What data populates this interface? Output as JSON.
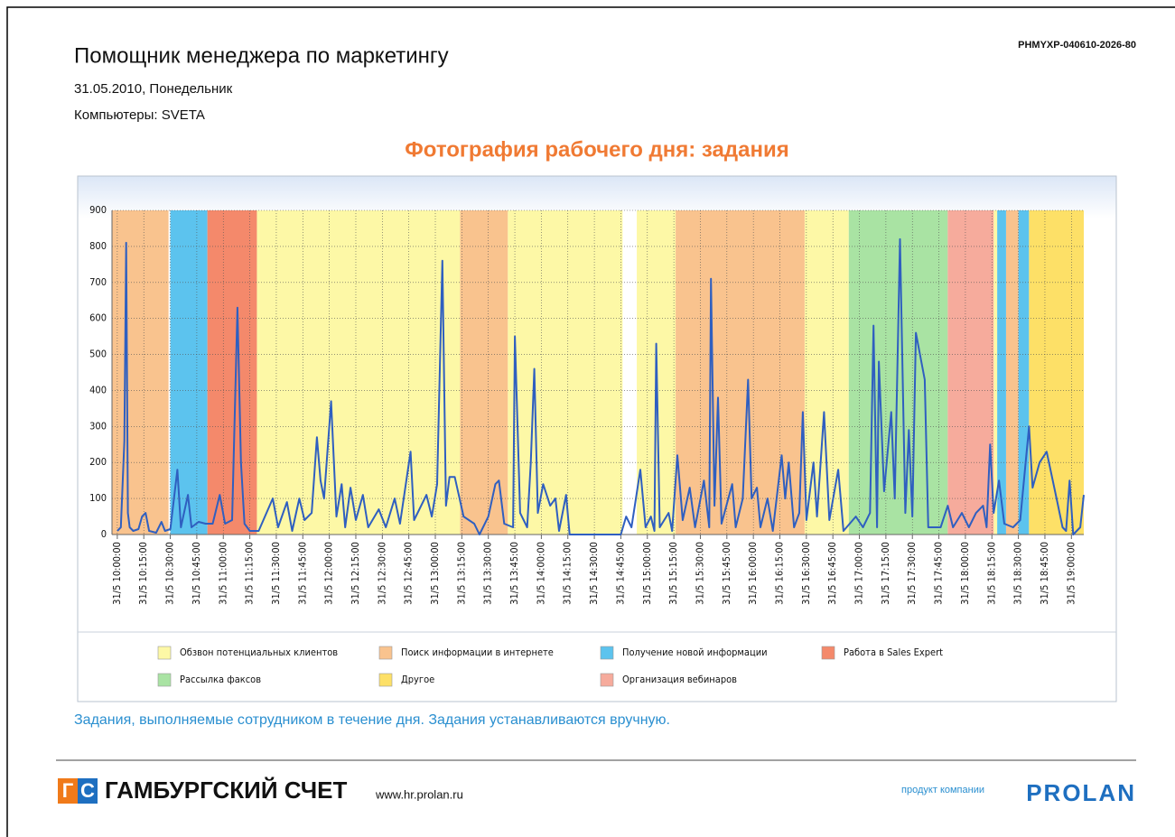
{
  "header": {
    "title": "Помощник менеджера по маркетингу",
    "date": "31.05.2010, Понедельник",
    "computers": "Компьютеры: SVETA",
    "code": "PHMYXP-040610-2026-80"
  },
  "chart_data": {
    "type": "line",
    "title": "Фотография рабочего дня: задания",
    "color": "#2f5fc0",
    "ylim": [
      0,
      900
    ],
    "yticks": [
      0,
      100,
      200,
      300,
      400,
      500,
      600,
      700,
      800,
      900
    ],
    "grid": true,
    "xlim": [
      "31/5 09:57:00",
      "31/5 19:07:00"
    ],
    "xticks": [
      "31/5 10:00:00",
      "31/5 10:15:00",
      "31/5 10:30:00",
      "31/5 10:45:00",
      "31/5 11:00:00",
      "31/5 11:15:00",
      "31/5 11:30:00",
      "31/5 11:45:00",
      "31/5 12:00:00",
      "31/5 12:15:00",
      "31/5 12:30:00",
      "31/5 12:45:00",
      "31/5 13:00:00",
      "31/5 13:15:00",
      "31/5 13:30:00",
      "31/5 13:45:00",
      "31/5 14:00:00",
      "31/5 14:15:00",
      "31/5 14:30:00",
      "31/5 14:45:00",
      "31/5 15:00:00",
      "31/5 15:15:00",
      "31/5 15:30:00",
      "31/5 15:45:00",
      "31/5 16:00:00",
      "31/5 16:15:00",
      "31/5 16:30:00",
      "31/5 16:45:00",
      "31/5 17:00:00",
      "31/5 17:15:00",
      "31/5 17:30:00",
      "31/5 17:45:00",
      "31/5 18:00:00",
      "31/5 18:15:00",
      "31/5 18:30:00",
      "31/5 18:45:00",
      "31/5 19:00:00"
    ],
    "x": [
      "31/5 10:00:00",
      "31/5 10:02:00",
      "31/5 10:04:00",
      "31/5 10:05:00",
      "31/5 10:06:00",
      "31/5 10:07:00",
      "31/5 10:09:00",
      "31/5 10:12:00",
      "31/5 10:14:00",
      "31/5 10:16:00",
      "31/5 10:18:00",
      "31/5 10:22:00",
      "31/5 10:25:00",
      "31/5 10:27:00",
      "31/5 10:30:00",
      "31/5 10:34:00",
      "31/5 10:36:00",
      "31/5 10:40:00",
      "31/5 10:42:00",
      "31/5 10:46:00",
      "31/5 10:50:00",
      "31/5 10:54:00",
      "31/5 10:58:00",
      "31/5 11:01:00",
      "31/5 11:05:00",
      "31/5 11:08:00",
      "31/5 11:10:00",
      "31/5 11:12:00",
      "31/5 11:15:00",
      "31/5 11:20:00",
      "31/5 11:28:00",
      "31/5 11:31:00",
      "31/5 11:36:00",
      "31/5 11:39:00",
      "31/5 11:43:00",
      "31/5 11:46:00",
      "31/5 11:50:00",
      "31/5 11:53:00",
      "31/5 11:55:00",
      "31/5 11:57:00",
      "31/5 12:01:00",
      "31/5 12:04:00",
      "31/5 12:07:00",
      "31/5 12:09:00",
      "31/5 12:12:00",
      "31/5 12:15:00",
      "31/5 12:19:00",
      "31/5 12:22:00",
      "31/5 12:28:00",
      "31/5 12:32:00",
      "31/5 12:37:00",
      "31/5 12:40:00",
      "31/5 12:46:00",
      "31/5 12:48:00",
      "31/5 12:55:00",
      "31/5 12:58:00",
      "31/5 13:01:00",
      "31/5 13:04:00",
      "31/5 13:06:00",
      "31/5 13:08:00",
      "31/5 13:11:00",
      "31/5 13:16:00",
      "31/5 13:22:00",
      "31/5 13:25:00",
      "31/5 13:30:00",
      "31/5 13:34:00",
      "31/5 13:36:00",
      "31/5 13:39:00",
      "31/5 13:44:00",
      "31/5 13:45:00",
      "31/5 13:48:00",
      "31/5 13:52:00",
      "31/5 13:54:00",
      "31/5 13:56:00",
      "31/5 13:58:00",
      "31/5 14:01:00",
      "31/5 14:05:00",
      "31/5 14:08:00",
      "31/5 14:10:00",
      "31/5 14:14:00",
      "31/5 14:16:00",
      "31/5 14:45:00",
      "31/5 14:48:00",
      "31/5 14:51:00",
      "31/5 14:56:00",
      "31/5 14:59:00",
      "31/5 15:02:00",
      "31/5 15:04:00",
      "31/5 15:05:00",
      "31/5 15:07:00",
      "31/5 15:12:00",
      "31/5 15:14:00",
      "31/5 15:17:00",
      "31/5 15:20:00",
      "31/5 15:24:00",
      "31/5 15:27:00",
      "31/5 15:32:00",
      "31/5 15:35:00",
      "31/5 15:36:00",
      "31/5 15:38:00",
      "31/5 15:40:00",
      "31/5 15:42:00",
      "31/5 15:48:00",
      "31/5 15:50:00",
      "31/5 15:54:00",
      "31/5 15:57:00",
      "31/5 15:59:00",
      "31/5 16:02:00",
      "31/5 16:04:00",
      "31/5 16:08:00",
      "31/5 16:11:00",
      "31/5 16:16:00",
      "31/5 16:18:00",
      "31/5 16:20:00",
      "31/5 16:23:00",
      "31/5 16:26:00",
      "31/5 16:28:00",
      "31/5 16:30:00",
      "31/5 16:34:00",
      "31/5 16:36:00",
      "31/5 16:40:00",
      "31/5 16:43:00",
      "31/5 16:48:00",
      "31/5 16:51:00",
      "31/5 16:58:00",
      "31/5 17:02:00",
      "31/5 17:06:00",
      "31/5 17:08:00",
      "31/5 17:10:00",
      "31/5 17:11:00",
      "31/5 17:14:00",
      "31/5 17:18:00",
      "31/5 17:20:00",
      "31/5 17:23:00",
      "31/5 17:26:00",
      "31/5 17:28:00",
      "31/5 17:30:00",
      "31/5 17:32:00",
      "31/5 17:37:00",
      "31/5 17:39:00",
      "31/5 17:46:00",
      "31/5 17:50:00",
      "31/5 17:53:00",
      "31/5 17:58:00",
      "31/5 18:02:00",
      "31/5 18:06:00",
      "31/5 18:10:00",
      "31/5 18:12:00",
      "31/5 18:14:00",
      "31/5 18:16:00",
      "31/5 18:19:00",
      "31/5 18:22:00",
      "31/5 18:27:00",
      "31/5 18:31:00",
      "31/5 18:36:00",
      "31/5 18:38:00",
      "31/5 18:42:00",
      "31/5 18:46:00",
      "31/5 18:49:00",
      "31/5 18:52:00",
      "31/5 18:55:00",
      "31/5 18:57:00",
      "31/5 18:59:00",
      "31/5 19:01:00",
      "31/5 19:05:00",
      "31/5 19:07:00"
    ],
    "values": [
      10,
      20,
      260,
      810,
      60,
      20,
      10,
      15,
      50,
      60,
      10,
      5,
      35,
      10,
      15,
      180,
      20,
      110,
      20,
      35,
      30,
      30,
      110,
      30,
      40,
      630,
      200,
      30,
      10,
      10,
      100,
      20,
      90,
      10,
      100,
      40,
      60,
      270,
      150,
      100,
      370,
      50,
      140,
      20,
      130,
      40,
      110,
      20,
      70,
      20,
      100,
      30,
      230,
      40,
      110,
      50,
      140,
      760,
      80,
      160,
      160,
      50,
      30,
      0,
      50,
      140,
      150,
      30,
      20,
      550,
      60,
      20,
      200,
      460,
      60,
      140,
      80,
      100,
      10,
      110,
      0,
      0,
      50,
      20,
      180,
      20,
      50,
      10,
      530,
      20,
      60,
      10,
      220,
      40,
      130,
      20,
      150,
      20,
      710,
      80,
      380,
      30,
      140,
      20,
      100,
      430,
      100,
      130,
      20,
      100,
      10,
      220,
      100,
      200,
      20,
      60,
      340,
      40,
      200,
      50,
      340,
      40,
      180,
      10,
      50,
      20,
      60,
      580,
      20,
      480,
      120,
      340,
      100,
      820,
      60,
      290,
      50,
      560,
      430,
      20,
      20,
      80,
      20,
      60,
      20,
      60,
      80,
      20,
      250,
      60,
      150,
      30,
      20,
      40,
      300,
      130,
      200,
      230,
      160,
      90,
      20,
      10,
      150,
      0,
      20,
      110
    ],
    "tasks": [
      {
        "name": "Обзвон потенциальных клиентов",
        "color": "#fdf8a6",
        "periods": [
          [
            "31/5 11:19:00",
            "31/5 13:14:00"
          ],
          [
            "31/5 13:41:00",
            "31/5 14:46:00"
          ],
          [
            "31/5 14:54:00",
            "31/5 15:16:00"
          ],
          [
            "31/5 16:29:00",
            "31/5 16:54:00"
          ],
          [
            "31/5 18:16:00",
            "31/5 18:18:00"
          ]
        ]
      },
      {
        "name": "Поиск информации в интернете",
        "color": "#f9c38e",
        "periods": [
          [
            "31/5 09:57:00",
            "31/5 10:29:00"
          ],
          [
            "31/5 13:14:00",
            "31/5 13:41:00"
          ],
          [
            "31/5 15:16:00",
            "31/5 16:29:00"
          ],
          [
            "31/5 18:23:00",
            "31/5 18:30:00"
          ]
        ]
      },
      {
        "name": "Получение новой информации",
        "color": "#5cc3ee",
        "periods": [
          [
            "31/5 10:30:00",
            "31/5 10:51:00"
          ],
          [
            "31/5 18:18:00",
            "31/5 18:23:00"
          ],
          [
            "31/5 18:30:00",
            "31/5 18:36:00"
          ]
        ]
      },
      {
        "name": "Работа в Sales Expert",
        "color": "#f4896b",
        "periods": [
          [
            "31/5 10:51:00",
            "31/5 11:19:00"
          ]
        ]
      },
      {
        "name": "Рассылка факсов",
        "color": "#a9e3a3",
        "periods": [
          [
            "31/5 16:54:00",
            "31/5 17:50:00"
          ]
        ]
      },
      {
        "name": "Другое",
        "color": "#fde067",
        "periods": [
          [
            "31/5 18:36:00",
            "31/5 19:07:00"
          ]
        ]
      },
      {
        "name": "Организация вебинаров",
        "color": "#f6ab9c",
        "periods": [
          [
            "31/5 17:50:00",
            "31/5 18:16:00"
          ]
        ]
      }
    ]
  },
  "caption": "Задания, выполняемые сотрудником в течение дня. Задания устанавливаются вручную.",
  "footer": {
    "logo_letters": [
      "Г",
      "С"
    ],
    "brand": "ГАМБУРГСКИЙ СЧЕТ",
    "url": "www.hr.prolan.ru",
    "vendor_text": "продукт компании",
    "vendor": "PROLAN"
  }
}
